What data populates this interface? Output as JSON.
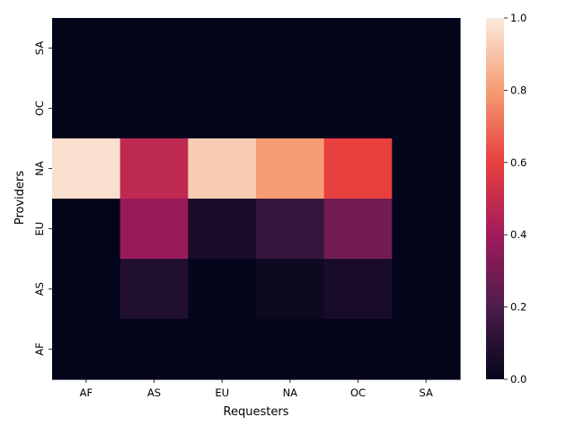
{
  "chart_data": {
    "type": "heatmap",
    "title": "",
    "xlabel": "Requesters",
    "ylabel": "Providers",
    "x_categories": [
      "AF",
      "AS",
      "EU",
      "NA",
      "OC",
      "SA"
    ],
    "y_categories": [
      "SA",
      "OC",
      "NA",
      "EU",
      "AS",
      "AF"
    ],
    "values": [
      [
        0.0,
        0.0,
        0.0,
        0.0,
        0.0,
        0.0
      ],
      [
        0.0,
        0.005,
        0.0,
        0.0,
        0.0,
        0.0
      ],
      [
        0.97,
        0.48,
        0.92,
        0.8,
        0.6,
        0.0
      ],
      [
        0.0,
        0.38,
        0.06,
        0.14,
        0.29,
        0.0
      ],
      [
        0.0,
        0.08,
        0.005,
        0.03,
        0.06,
        0.0
      ],
      [
        0.0,
        0.0,
        0.0,
        0.0,
        0.0,
        0.0
      ]
    ],
    "colorbar": {
      "range": [
        0.0,
        1.0
      ],
      "ticks": [
        "0.0",
        "0.2",
        "0.4",
        "0.6",
        "0.8",
        "1.0"
      ],
      "colormap": "rocket",
      "stops": [
        "#03051a",
        "#4c1d4b",
        "#a11a5b",
        "#e83f3f",
        "#f69c73",
        "#faebdd"
      ]
    },
    "grid": false,
    "legend": "colorbar-right"
  }
}
